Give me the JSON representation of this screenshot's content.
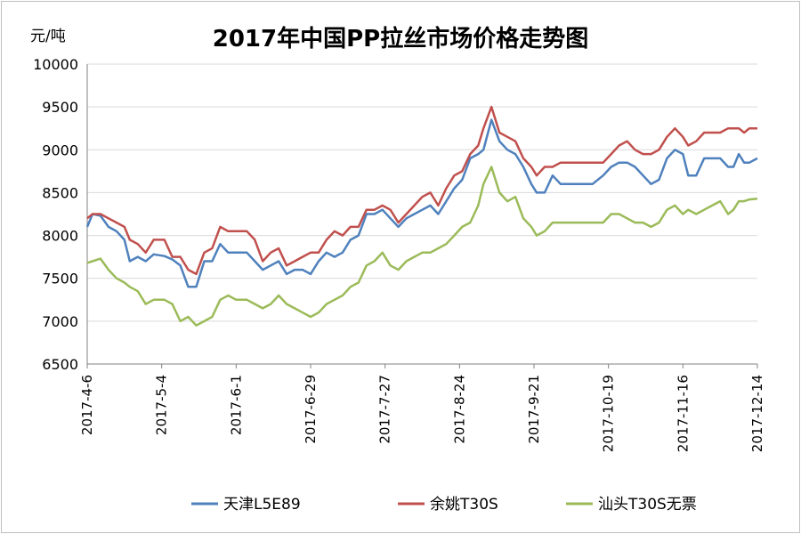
{
  "chart_data": {
    "type": "line",
    "title": "2017年中国PP拉丝市场价格走势图",
    "ylabel": "元/吨",
    "xlabel": "",
    "ylim": [
      6500,
      10000
    ],
    "ytick_step": 500,
    "grid": true,
    "legend_position": "bottom",
    "x_start": "2017-4-6",
    "x_end": "2017-12-14",
    "x_tick_labels": [
      "2017-4-6",
      "2017-5-4",
      "2017-6-1",
      "2017-6-29",
      "2017-7-27",
      "2017-8-24",
      "2017-9-21",
      "2017-10-19",
      "2017-11-16",
      "2017-12-14"
    ],
    "series": [
      {
        "name": "天津L5E89",
        "color": "#4f81bd",
        "points": [
          [
            "2017-4-6",
            8100
          ],
          [
            "2017-4-8",
            8250
          ],
          [
            "2017-4-11",
            8230
          ],
          [
            "2017-4-14",
            8100
          ],
          [
            "2017-4-17",
            8050
          ],
          [
            "2017-4-20",
            7950
          ],
          [
            "2017-4-22",
            7700
          ],
          [
            "2017-4-25",
            7750
          ],
          [
            "2017-4-28",
            7700
          ],
          [
            "2017-5-1",
            7780
          ],
          [
            "2017-5-5",
            7760
          ],
          [
            "2017-5-8",
            7720
          ],
          [
            "2017-5-11",
            7650
          ],
          [
            "2017-5-14",
            7400
          ],
          [
            "2017-5-17",
            7400
          ],
          [
            "2017-5-20",
            7700
          ],
          [
            "2017-5-23",
            7700
          ],
          [
            "2017-5-26",
            7900
          ],
          [
            "2017-5-29",
            7800
          ],
          [
            "2017-6-1",
            7800
          ],
          [
            "2017-6-5",
            7800
          ],
          [
            "2017-6-8",
            7700
          ],
          [
            "2017-6-11",
            7600
          ],
          [
            "2017-6-14",
            7650
          ],
          [
            "2017-6-17",
            7700
          ],
          [
            "2017-6-20",
            7550
          ],
          [
            "2017-6-23",
            7600
          ],
          [
            "2017-6-26",
            7600
          ],
          [
            "2017-6-29",
            7550
          ],
          [
            "2017-7-2",
            7700
          ],
          [
            "2017-7-5",
            7800
          ],
          [
            "2017-7-8",
            7750
          ],
          [
            "2017-7-11",
            7800
          ],
          [
            "2017-7-14",
            7950
          ],
          [
            "2017-7-17",
            8000
          ],
          [
            "2017-7-20",
            8250
          ],
          [
            "2017-7-23",
            8250
          ],
          [
            "2017-7-26",
            8300
          ],
          [
            "2017-7-29",
            8200
          ],
          [
            "2017-8-1",
            8100
          ],
          [
            "2017-8-4",
            8200
          ],
          [
            "2017-8-7",
            8250
          ],
          [
            "2017-8-10",
            8300
          ],
          [
            "2017-8-13",
            8350
          ],
          [
            "2017-8-16",
            8250
          ],
          [
            "2017-8-19",
            8400
          ],
          [
            "2017-8-22",
            8550
          ],
          [
            "2017-8-25",
            8650
          ],
          [
            "2017-8-28",
            8900
          ],
          [
            "2017-8-31",
            8950
          ],
          [
            "2017-9-2",
            9000
          ],
          [
            "2017-9-5",
            9350
          ],
          [
            "2017-9-8",
            9100
          ],
          [
            "2017-9-11",
            9000
          ],
          [
            "2017-9-14",
            8950
          ],
          [
            "2017-9-17",
            8800
          ],
          [
            "2017-9-20",
            8600
          ],
          [
            "2017-9-22",
            8500
          ],
          [
            "2017-9-25",
            8500
          ],
          [
            "2017-9-28",
            8700
          ],
          [
            "2017-10-1",
            8600
          ],
          [
            "2017-10-5",
            8600
          ],
          [
            "2017-10-9",
            8600
          ],
          [
            "2017-10-13",
            8600
          ],
          [
            "2017-10-17",
            8700
          ],
          [
            "2017-10-20",
            8800
          ],
          [
            "2017-10-23",
            8850
          ],
          [
            "2017-10-26",
            8850
          ],
          [
            "2017-10-29",
            8800
          ],
          [
            "2017-11-1",
            8700
          ],
          [
            "2017-11-4",
            8600
          ],
          [
            "2017-11-7",
            8650
          ],
          [
            "2017-11-10",
            8900
          ],
          [
            "2017-11-13",
            9000
          ],
          [
            "2017-11-16",
            8950
          ],
          [
            "2017-11-18",
            8700
          ],
          [
            "2017-11-21",
            8700
          ],
          [
            "2017-11-24",
            8900
          ],
          [
            "2017-11-27",
            8900
          ],
          [
            "2017-11-30",
            8900
          ],
          [
            "2017-12-3",
            8800
          ],
          [
            "2017-12-5",
            8800
          ],
          [
            "2017-12-7",
            8950
          ],
          [
            "2017-12-9",
            8850
          ],
          [
            "2017-12-11",
            8850
          ],
          [
            "2017-12-14",
            8900
          ]
        ]
      },
      {
        "name": "余姚T30S",
        "color": "#c0504d",
        "points": [
          [
            "2017-4-6",
            8200
          ],
          [
            "2017-4-8",
            8250
          ],
          [
            "2017-4-11",
            8250
          ],
          [
            "2017-4-14",
            8200
          ],
          [
            "2017-4-17",
            8150
          ],
          [
            "2017-4-20",
            8100
          ],
          [
            "2017-4-22",
            7950
          ],
          [
            "2017-4-25",
            7900
          ],
          [
            "2017-4-28",
            7800
          ],
          [
            "2017-5-1",
            7950
          ],
          [
            "2017-5-5",
            7950
          ],
          [
            "2017-5-8",
            7750
          ],
          [
            "2017-5-11",
            7750
          ],
          [
            "2017-5-14",
            7600
          ],
          [
            "2017-5-17",
            7550
          ],
          [
            "2017-5-20",
            7800
          ],
          [
            "2017-5-23",
            7850
          ],
          [
            "2017-5-26",
            8100
          ],
          [
            "2017-5-29",
            8050
          ],
          [
            "2017-6-1",
            8050
          ],
          [
            "2017-6-5",
            8050
          ],
          [
            "2017-6-8",
            7950
          ],
          [
            "2017-6-11",
            7700
          ],
          [
            "2017-6-14",
            7800
          ],
          [
            "2017-6-17",
            7850
          ],
          [
            "2017-6-20",
            7650
          ],
          [
            "2017-6-23",
            7700
          ],
          [
            "2017-6-26",
            7750
          ],
          [
            "2017-6-29",
            7800
          ],
          [
            "2017-7-2",
            7800
          ],
          [
            "2017-7-5",
            7950
          ],
          [
            "2017-7-8",
            8050
          ],
          [
            "2017-7-11",
            8000
          ],
          [
            "2017-7-14",
            8100
          ],
          [
            "2017-7-17",
            8100
          ],
          [
            "2017-7-20",
            8300
          ],
          [
            "2017-7-23",
            8300
          ],
          [
            "2017-7-26",
            8350
          ],
          [
            "2017-7-29",
            8300
          ],
          [
            "2017-8-1",
            8150
          ],
          [
            "2017-8-4",
            8250
          ],
          [
            "2017-8-7",
            8350
          ],
          [
            "2017-8-10",
            8450
          ],
          [
            "2017-8-13",
            8500
          ],
          [
            "2017-8-16",
            8350
          ],
          [
            "2017-8-19",
            8550
          ],
          [
            "2017-8-22",
            8700
          ],
          [
            "2017-8-25",
            8750
          ],
          [
            "2017-8-28",
            8950
          ],
          [
            "2017-8-31",
            9050
          ],
          [
            "2017-9-2",
            9250
          ],
          [
            "2017-9-5",
            9500
          ],
          [
            "2017-9-8",
            9200
          ],
          [
            "2017-9-11",
            9150
          ],
          [
            "2017-9-14",
            9100
          ],
          [
            "2017-9-17",
            8900
          ],
          [
            "2017-9-20",
            8800
          ],
          [
            "2017-9-22",
            8700
          ],
          [
            "2017-9-25",
            8800
          ],
          [
            "2017-9-28",
            8800
          ],
          [
            "2017-10-1",
            8850
          ],
          [
            "2017-10-5",
            8850
          ],
          [
            "2017-10-9",
            8850
          ],
          [
            "2017-10-13",
            8850
          ],
          [
            "2017-10-17",
            8850
          ],
          [
            "2017-10-20",
            8950
          ],
          [
            "2017-10-23",
            9050
          ],
          [
            "2017-10-26",
            9100
          ],
          [
            "2017-10-29",
            9000
          ],
          [
            "2017-11-1",
            8950
          ],
          [
            "2017-11-4",
            8950
          ],
          [
            "2017-11-7",
            9000
          ],
          [
            "2017-11-10",
            9150
          ],
          [
            "2017-11-13",
            9250
          ],
          [
            "2017-11-16",
            9150
          ],
          [
            "2017-11-18",
            9050
          ],
          [
            "2017-11-21",
            9100
          ],
          [
            "2017-11-24",
            9200
          ],
          [
            "2017-11-27",
            9200
          ],
          [
            "2017-11-30",
            9200
          ],
          [
            "2017-12-3",
            9250
          ],
          [
            "2017-12-5",
            9250
          ],
          [
            "2017-12-7",
            9250
          ],
          [
            "2017-12-9",
            9200
          ],
          [
            "2017-12-11",
            9250
          ],
          [
            "2017-12-14",
            9250
          ]
        ]
      },
      {
        "name": "汕头T30S无票",
        "color": "#9bbb59",
        "points": [
          [
            "2017-4-6",
            7680
          ],
          [
            "2017-4-8",
            7700
          ],
          [
            "2017-4-11",
            7730
          ],
          [
            "2017-4-14",
            7600
          ],
          [
            "2017-4-17",
            7500
          ],
          [
            "2017-4-20",
            7450
          ],
          [
            "2017-4-22",
            7400
          ],
          [
            "2017-4-25",
            7350
          ],
          [
            "2017-4-28",
            7200
          ],
          [
            "2017-5-1",
            7250
          ],
          [
            "2017-5-5",
            7250
          ],
          [
            "2017-5-8",
            7200
          ],
          [
            "2017-5-11",
            7000
          ],
          [
            "2017-5-14",
            7050
          ],
          [
            "2017-5-17",
            6950
          ],
          [
            "2017-5-20",
            7000
          ],
          [
            "2017-5-23",
            7050
          ],
          [
            "2017-5-26",
            7250
          ],
          [
            "2017-5-29",
            7300
          ],
          [
            "2017-6-1",
            7250
          ],
          [
            "2017-6-5",
            7250
          ],
          [
            "2017-6-8",
            7200
          ],
          [
            "2017-6-11",
            7150
          ],
          [
            "2017-6-14",
            7200
          ],
          [
            "2017-6-17",
            7300
          ],
          [
            "2017-6-20",
            7200
          ],
          [
            "2017-6-23",
            7150
          ],
          [
            "2017-6-26",
            7100
          ],
          [
            "2017-6-29",
            7050
          ],
          [
            "2017-7-2",
            7100
          ],
          [
            "2017-7-5",
            7200
          ],
          [
            "2017-7-8",
            7250
          ],
          [
            "2017-7-11",
            7300
          ],
          [
            "2017-7-14",
            7400
          ],
          [
            "2017-7-17",
            7450
          ],
          [
            "2017-7-20",
            7650
          ],
          [
            "2017-7-23",
            7700
          ],
          [
            "2017-7-26",
            7800
          ],
          [
            "2017-7-29",
            7650
          ],
          [
            "2017-8-1",
            7600
          ],
          [
            "2017-8-4",
            7700
          ],
          [
            "2017-8-7",
            7750
          ],
          [
            "2017-8-10",
            7800
          ],
          [
            "2017-8-13",
            7800
          ],
          [
            "2017-8-16",
            7850
          ],
          [
            "2017-8-19",
            7900
          ],
          [
            "2017-8-22",
            8000
          ],
          [
            "2017-8-25",
            8100
          ],
          [
            "2017-8-28",
            8150
          ],
          [
            "2017-8-31",
            8350
          ],
          [
            "2017-9-2",
            8600
          ],
          [
            "2017-9-5",
            8800
          ],
          [
            "2017-9-8",
            8500
          ],
          [
            "2017-9-11",
            8400
          ],
          [
            "2017-9-14",
            8450
          ],
          [
            "2017-9-17",
            8200
          ],
          [
            "2017-9-20",
            8100
          ],
          [
            "2017-9-22",
            8000
          ],
          [
            "2017-9-25",
            8050
          ],
          [
            "2017-9-28",
            8150
          ],
          [
            "2017-10-1",
            8150
          ],
          [
            "2017-10-5",
            8150
          ],
          [
            "2017-10-9",
            8150
          ],
          [
            "2017-10-13",
            8150
          ],
          [
            "2017-10-17",
            8150
          ],
          [
            "2017-10-20",
            8250
          ],
          [
            "2017-10-23",
            8250
          ],
          [
            "2017-10-26",
            8200
          ],
          [
            "2017-10-29",
            8150
          ],
          [
            "2017-11-1",
            8150
          ],
          [
            "2017-11-4",
            8100
          ],
          [
            "2017-11-7",
            8150
          ],
          [
            "2017-11-10",
            8300
          ],
          [
            "2017-11-13",
            8350
          ],
          [
            "2017-11-16",
            8250
          ],
          [
            "2017-11-18",
            8300
          ],
          [
            "2017-11-21",
            8250
          ],
          [
            "2017-11-24",
            8300
          ],
          [
            "2017-11-27",
            8350
          ],
          [
            "2017-11-30",
            8400
          ],
          [
            "2017-12-3",
            8250
          ],
          [
            "2017-12-5",
            8300
          ],
          [
            "2017-12-7",
            8400
          ],
          [
            "2017-12-9",
            8400
          ],
          [
            "2017-12-11",
            8420
          ],
          [
            "2017-12-14",
            8430
          ]
        ]
      }
    ]
  }
}
